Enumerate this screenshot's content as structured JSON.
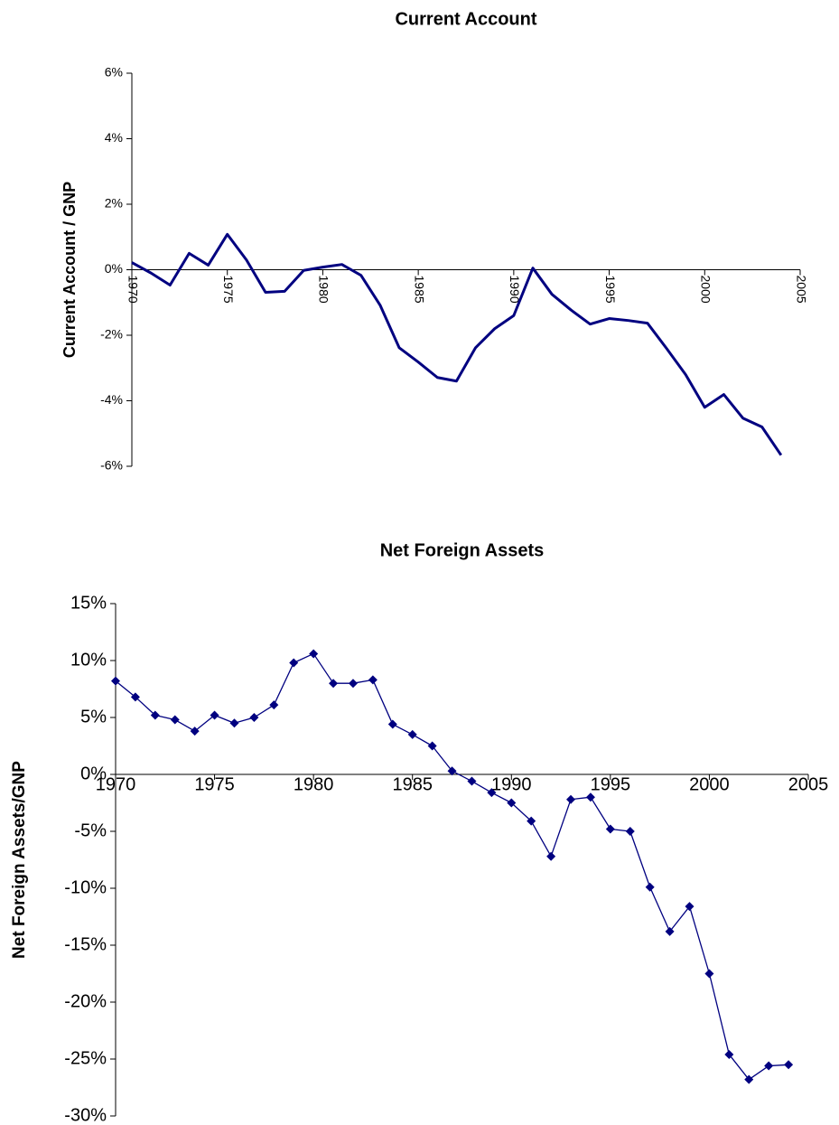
{
  "chart_data": [
    {
      "type": "line",
      "title": "Current Account",
      "y_label": "Current Account / GNP",
      "x": [
        1970,
        1971,
        1972,
        1973,
        1974,
        1975,
        1976,
        1977,
        1978,
        1979,
        1980,
        1981,
        1982,
        1983,
        1984,
        1985,
        1986,
        1987,
        1988,
        1989,
        1990,
        1991,
        1992,
        1993,
        1994,
        1995,
        1996,
        1997,
        1998,
        1999,
        2000,
        2001,
        2002,
        2003,
        2004
      ],
      "values": [
        0.22,
        -0.1,
        -0.47,
        0.5,
        0.14,
        1.08,
        0.3,
        -0.69,
        -0.66,
        -0.02,
        0.08,
        0.16,
        -0.17,
        -1.08,
        -2.38,
        -2.82,
        -3.29,
        -3.4,
        -2.38,
        -1.8,
        -1.4,
        0.05,
        -0.75,
        -1.23,
        -1.66,
        -1.49,
        -1.55,
        -1.63,
        -2.4,
        -3.2,
        -4.2,
        -3.81,
        -4.53,
        -4.8,
        -5.66
      ],
      "color": "#000080",
      "markers": false,
      "xlim": [
        1970,
        2005
      ],
      "xticks": [
        1970,
        1975,
        1980,
        1985,
        1990,
        1995,
        2000,
        2005
      ],
      "ylim": [
        -6,
        6
      ],
      "yticks": [
        {
          "value": -6,
          "label": "-6%"
        },
        {
          "value": -4,
          "label": "-4%"
        },
        {
          "value": -2,
          "label": "-2%"
        },
        {
          "value": 0,
          "label": "0%"
        },
        {
          "value": 2,
          "label": "2%"
        },
        {
          "value": 4,
          "label": "4%"
        },
        {
          "value": 6,
          "label": "6%"
        }
      ]
    },
    {
      "type": "line",
      "title": "Net Foreign Assets",
      "y_label": "Net Foreign Assets/GNP",
      "x": [
        1970,
        1971,
        1972,
        1973,
        1974,
        1975,
        1976,
        1977,
        1978,
        1979,
        1980,
        1981,
        1982,
        1983,
        1984,
        1985,
        1986,
        1987,
        1988,
        1989,
        1990,
        1991,
        1992,
        1993,
        1994,
        1995,
        1996,
        1997,
        1998,
        1999,
        2000,
        2001,
        2002,
        2003,
        2004
      ],
      "values": [
        8.2,
        6.8,
        5.2,
        4.8,
        3.8,
        5.2,
        4.5,
        5.0,
        6.1,
        9.8,
        10.6,
        8.0,
        8.0,
        8.3,
        4.4,
        3.5,
        2.5,
        0.3,
        -0.6,
        -1.6,
        -2.5,
        -4.1,
        -7.2,
        -2.2,
        -2.0,
        -4.8,
        -5.0,
        -9.9,
        -13.8,
        -11.6,
        -17.5,
        -24.6,
        -26.8,
        -25.6,
        -25.5
      ],
      "color": "#000080",
      "markers": "diamond",
      "xlim": [
        1970,
        2005
      ],
      "xticks": [
        1970,
        1975,
        1980,
        1985,
        1990,
        1995,
        2000,
        2005
      ],
      "ylim": [
        -30,
        15
      ],
      "yticks": [
        {
          "value": -30,
          "label": "-30%"
        },
        {
          "value": -25,
          "label": "-25%"
        },
        {
          "value": -20,
          "label": "-20%"
        },
        {
          "value": -15,
          "label": "-15%"
        },
        {
          "value": -10,
          "label": "-10%"
        },
        {
          "value": -5,
          "label": "-5%"
        },
        {
          "value": 0,
          "label": "0%"
        },
        {
          "value": 5,
          "label": "5%"
        },
        {
          "value": 10,
          "label": "10%"
        },
        {
          "value": 15,
          "label": "15%"
        }
      ]
    }
  ]
}
